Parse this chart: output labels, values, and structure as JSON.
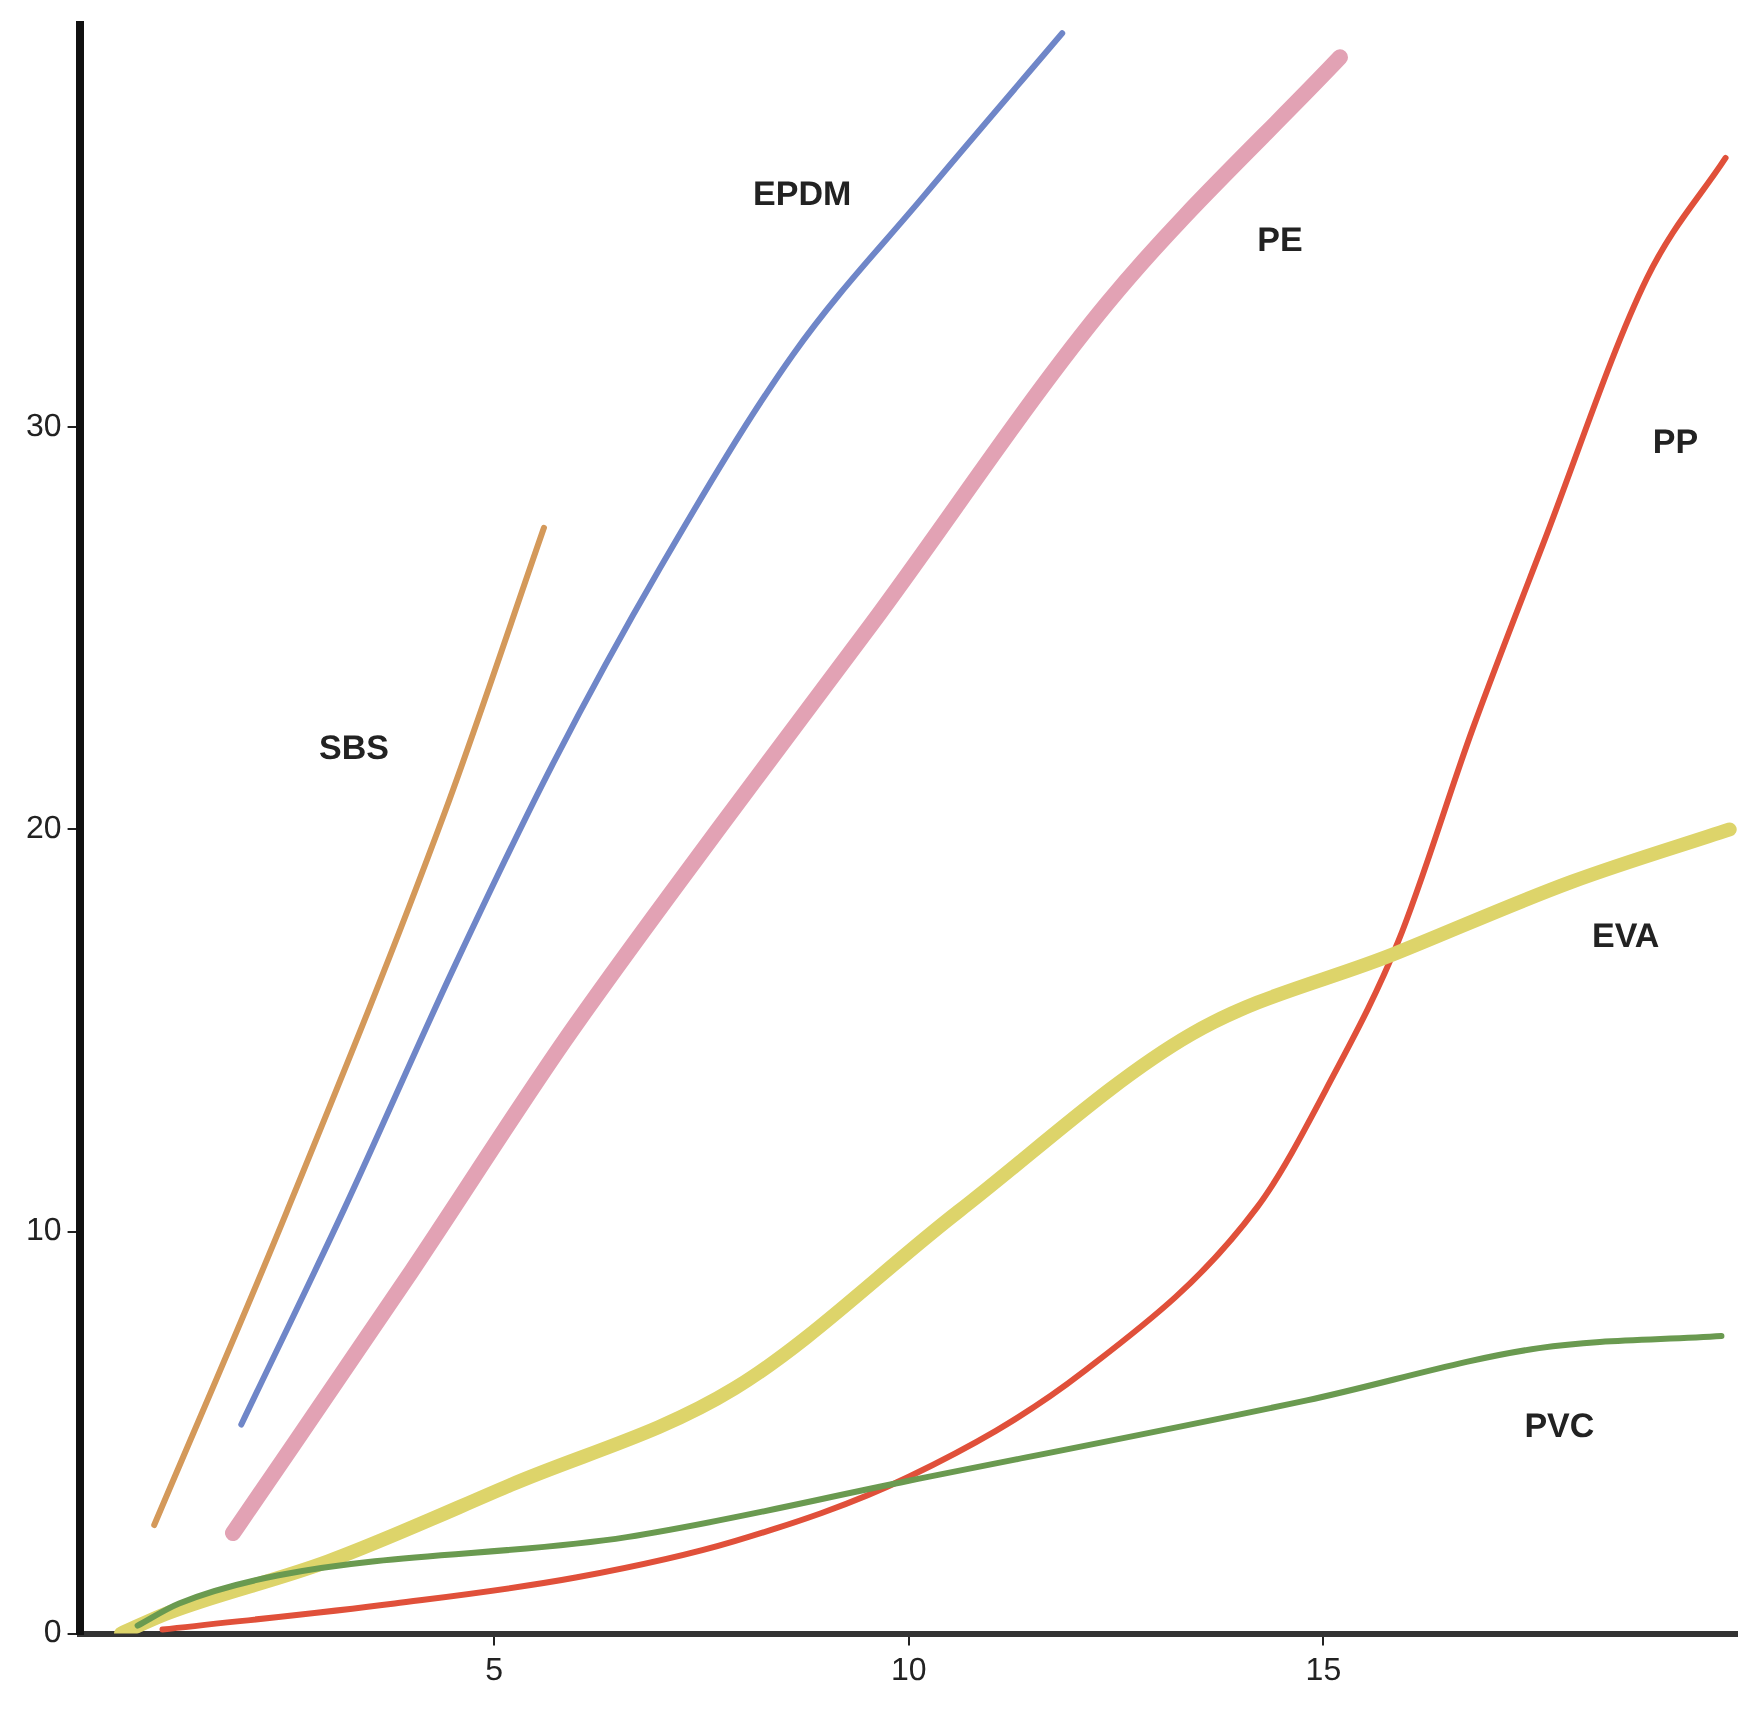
{
  "chart_data": {
    "type": "line",
    "xlim": [
      0,
      20
    ],
    "ylim": [
      0,
      40
    ],
    "xticks": [
      5,
      10,
      15
    ],
    "yticks": [
      0,
      10,
      20,
      30
    ],
    "grid": false,
    "legend": false,
    "marker": "none",
    "line_style": "solid",
    "series": [
      {
        "name": "SBS",
        "color": "#d4995a",
        "x": [
          0.9,
          2.5,
          4.4,
          5.6
        ],
        "values": [
          2.7,
          10.5,
          20.4,
          27.5
        ]
      },
      {
        "name": "EPDM",
        "color": "#6f86c8",
        "x": [
          1.95,
          3.2,
          4.5,
          5.7,
          7,
          8.6,
          10.2,
          11.85
        ],
        "values": [
          5.2,
          10.6,
          16.5,
          21.6,
          26.5,
          31.8,
          35.8,
          39.8
        ]
      },
      {
        "name": "PE",
        "color": "#e2a2b4",
        "x": [
          1.85,
          4,
          5.85,
          7.7,
          9.55,
          12.4,
          15.2
        ],
        "values": [
          2.5,
          9,
          14.75,
          20,
          25.1,
          33.1,
          39.2
        ]
      },
      {
        "name": "PP",
        "color": "#e0503a",
        "x": [
          1,
          3.8,
          6,
          7.9,
          10,
          12.1,
          14.2,
          15.1,
          15.9,
          16.8,
          17.65,
          18.9,
          19.85
        ],
        "values": [
          0.1,
          0.75,
          1.4,
          2.3,
          3.9,
          6.5,
          10.6,
          13.8,
          17.2,
          22.5,
          27.1,
          33.7,
          36.7
        ]
      },
      {
        "name": "EVA",
        "color": "#ddd46a",
        "x": [
          0.5,
          1.05,
          3,
          5.2,
          7.9,
          10.6,
          13.4,
          15.85,
          18,
          19.9
        ],
        "values": [
          0,
          0.5,
          1.8,
          3.7,
          6.1,
          10.5,
          14.9,
          16.9,
          18.7,
          20
        ]
      },
      {
        "name": "PVC",
        "color": "#6a9a50",
        "x": [
          0.7,
          1.2,
          2.4,
          6.6,
          10,
          14.8,
          17.6,
          19.8
        ],
        "values": [
          0.2,
          0.75,
          1.45,
          2.4,
          3.8,
          5.8,
          7.1,
          7.4
        ]
      }
    ]
  }
}
